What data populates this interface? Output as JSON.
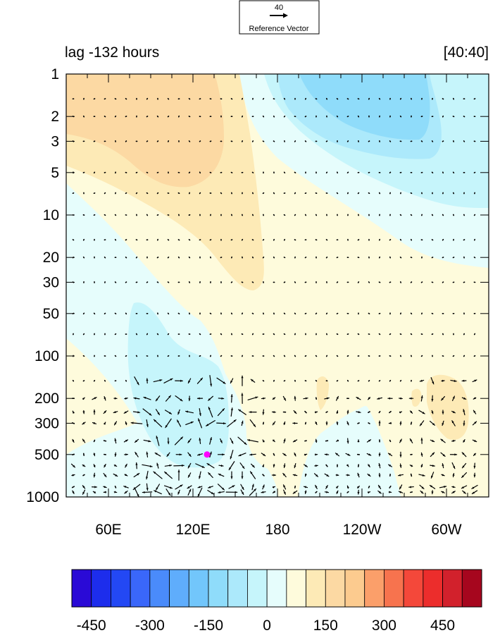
{
  "chart_data": {
    "type": "heatmap",
    "title_left": "lag -132 hours",
    "title_right": "[40:40]",
    "reference_vector": {
      "value": "40",
      "label": "Reference Vector"
    },
    "x_ticks": [
      {
        "lon": 60,
        "label": "60E"
      },
      {
        "lon": 120,
        "label": "120E"
      },
      {
        "lon": 180,
        "label": "180"
      },
      {
        "lon": 240,
        "label": "120W"
      },
      {
        "lon": 300,
        "label": "60W"
      }
    ],
    "xlim": [
      30,
      330
    ],
    "y_scale": "log",
    "ylim": [
      1,
      1000
    ],
    "y_ticks": [
      1,
      2,
      3,
      5,
      10,
      20,
      30,
      50,
      100,
      200,
      300,
      500,
      1000
    ],
    "colorbar": {
      "levels": [
        -500,
        -450,
        -400,
        -350,
        -300,
        -250,
        -200,
        -150,
        -100,
        -50,
        0,
        50,
        100,
        150,
        200,
        250,
        300,
        350,
        400,
        450,
        500
      ],
      "colors": [
        "#2a0ad6",
        "#1d2dec",
        "#2348f4",
        "#3a67fa",
        "#4a8bfb",
        "#5fadfc",
        "#72c6fb",
        "#8fdcfa",
        "#ace9fb",
        "#c6f5fb",
        "#e6fdfc",
        "#fefbdc",
        "#fdeab6",
        "#fcd9a3",
        "#fccb8f",
        "#fb9f6a",
        "#f7734e",
        "#f4483a",
        "#ec2d2c",
        "#d2212c",
        "#a6061e"
      ],
      "tick_labels": [
        {
          "value": -450,
          "label": "-450"
        },
        {
          "value": -300,
          "label": "-300"
        },
        {
          "value": -150,
          "label": "-150"
        },
        {
          "value": 0,
          "label": "0"
        },
        {
          "value": 150,
          "label": "150"
        },
        {
          "value": 300,
          "label": "300"
        },
        {
          "value": 450,
          "label": "450"
        }
      ]
    },
    "marker": {
      "lon": 130,
      "pressure": 500,
      "color": "#ff00ff"
    },
    "field_colors": {
      "neg150": "#8fdcfa",
      "neg100": "#ace9fb",
      "neg50": "#c6f5fb",
      "near0_neg": "#e6fdfc",
      "near0_pos": "#fefbdc",
      "pos50": "#fdeab6",
      "pos100": "#fcd9a3"
    }
  }
}
